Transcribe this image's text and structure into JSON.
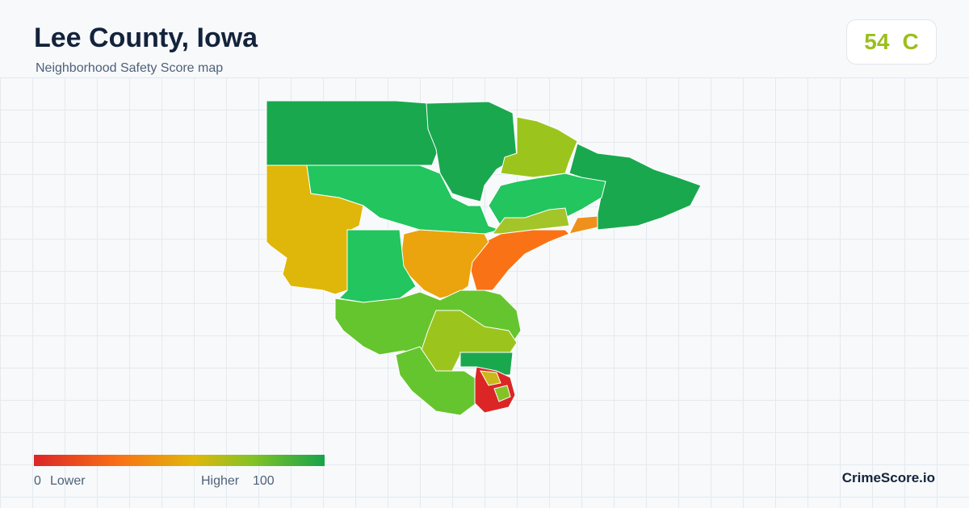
{
  "header": {
    "title": "Lee County, Iowa",
    "subtitle": "Neighborhood Safety Score map"
  },
  "score": {
    "value": 54,
    "grade": "C"
  },
  "legend": {
    "min": 0,
    "min_label": "Lower",
    "max_label": "Higher",
    "max": 100
  },
  "footer": {
    "brand": "CrimeScore.io"
  }
}
